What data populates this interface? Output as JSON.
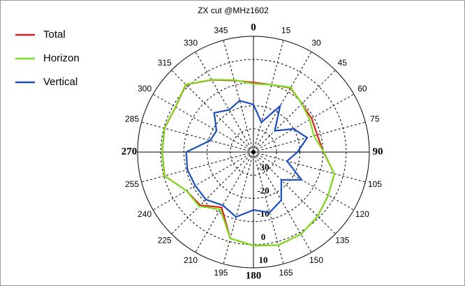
{
  "chart_data": {
    "type": "polar",
    "title": "ZX cut @MHz1602",
    "theta": [
      0,
      15,
      30,
      45,
      60,
      75,
      90,
      105,
      120,
      135,
      150,
      165,
      180,
      195,
      210,
      225,
      240,
      255,
      270,
      285,
      300,
      315,
      330,
      345
    ],
    "thetaticks": [
      0,
      15,
      30,
      45,
      60,
      75,
      90,
      105,
      120,
      135,
      150,
      165,
      180,
      195,
      210,
      225,
      240,
      255,
      270,
      285,
      300,
      315,
      330,
      345
    ],
    "rlim": [
      -40,
      10
    ],
    "rticks": [
      -30,
      -20,
      -10,
      0,
      10
    ],
    "grid": true,
    "legend": "upper-left",
    "series": [
      {
        "name": "Total",
        "color": "#e0201e",
        "values": [
          -10,
          -9.9,
          -8,
          -10.5,
          -11,
          -11.5,
          -9.8,
          -3.9,
          -2.7,
          -0.8,
          1,
          1.6,
          0.4,
          -1.4,
          -12.5,
          -7.5,
          -6.6,
          -0.3,
          -0.6,
          -0.3,
          -1.2,
          1.2,
          -4,
          -8
        ]
      },
      {
        "name": "Horizon",
        "color": "#7ee020",
        "values": [
          -10.5,
          -9.9,
          -7.8,
          -10.5,
          -12,
          -13,
          -9.6,
          -3.9,
          -2.7,
          -0.8,
          1,
          1.6,
          0.4,
          -1.4,
          -11.4,
          -6.9,
          -6.6,
          -0.2,
          -0.5,
          -0.2,
          -1.1,
          1.3,
          -3.9,
          -7.8
        ]
      },
      {
        "name": "Vertical",
        "color": "#1a4ec0",
        "values": [
          -19.5,
          -26.7,
          -17,
          -27,
          -20,
          -16,
          -21,
          -25,
          -16,
          -23,
          -16,
          -13,
          -15,
          -11,
          -13.5,
          -11,
          -11,
          -10.5,
          -11,
          -20.7,
          -21.6,
          -16,
          -19,
          -17
        ]
      }
    ]
  }
}
